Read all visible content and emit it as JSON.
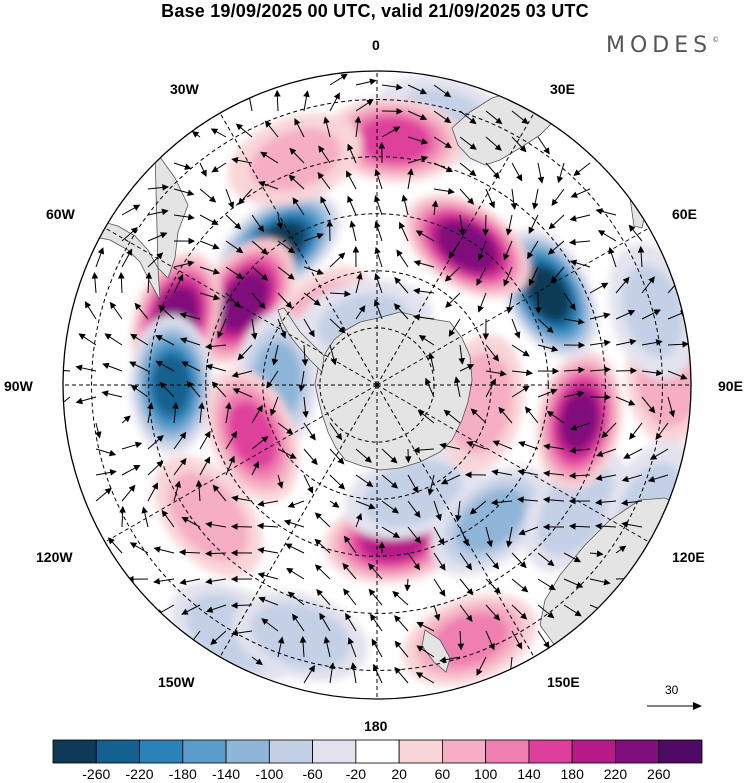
{
  "title": "Base 19/09/2025 00 UTC, valid 21/09/2025 03 UTC",
  "brand": "MODES",
  "brand_mark": "©",
  "lon_labels": {
    "n0": "0",
    "n30e": "30E",
    "n60e": "60E",
    "n90e": "90E",
    "n120e": "120E",
    "n150e": "150E",
    "n180": "180",
    "n150w": "150W",
    "n120w": "120W",
    "n90w": "90W",
    "n60w": "60W",
    "n30w": "30W"
  },
  "reference_vector": {
    "value": "30"
  },
  "colorbar": {
    "ticks": [
      "-260",
      "-220",
      "-180",
      "-140",
      "-100",
      "-60",
      "-20",
      "20",
      "60",
      "100",
      "140",
      "180",
      "220",
      "260"
    ],
    "colors": [
      "#0f3a57",
      "#14608f",
      "#2a82b8",
      "#5a9ccb",
      "#8fb5d8",
      "#c3d0e6",
      "#e3e3ef",
      "#ffffff",
      "#f9d5d8",
      "#f5aec3",
      "#ef7fb0",
      "#df3f9c",
      "#b81a89",
      "#800e7c",
      "#4f0a66"
    ]
  },
  "map": {
    "colors": {
      "land": "#e4e4e4",
      "coast": "#555555",
      "grid": "#000000"
    },
    "anomalies": [
      {
        "id": "neg-30w",
        "lon": -35,
        "colat": 60,
        "value": -270
      },
      {
        "id": "pos-55w",
        "lon": -58,
        "colat": 55,
        "value": 240
      },
      {
        "id": "pos-68w",
        "lon": -72,
        "colat": 74,
        "value": 250
      },
      {
        "id": "pos-48w",
        "lon": -44,
        "colat": 30,
        "value": 80
      },
      {
        "id": "neg-88w",
        "lon": -90,
        "colat": 72,
        "value": -230
      },
      {
        "id": "neg-80w-inner",
        "lon": -88,
        "colat": 35,
        "value": -110
      },
      {
        "id": "pos-110w",
        "lon": -112,
        "colat": 47,
        "value": 150
      },
      {
        "id": "neg-150w",
        "lon": -150,
        "colat": 100,
        "value": -90
      },
      {
        "id": "neg-165w",
        "lon": -163,
        "colat": 92,
        "value": -80
      },
      {
        "id": "pos-130w",
        "lon": -128,
        "colat": 75,
        "value": 80
      },
      {
        "id": "pos-175e",
        "lon": 174,
        "colat": 55,
        "value": 190
      },
      {
        "id": "neg-165e",
        "lon": 162,
        "colat": 40,
        "value": -80
      },
      {
        "id": "neg-140e",
        "lon": 140,
        "colat": 62,
        "value": -110
      },
      {
        "id": "neg-125e",
        "lon": 122,
        "colat": 82,
        "value": -80
      },
      {
        "id": "pos-160e",
        "lon": 160,
        "colat": 95,
        "value": 110
      },
      {
        "id": "pos-95e",
        "lon": 100,
        "colat": 72,
        "value": 220
      },
      {
        "id": "pos-100e-inner",
        "lon": 100,
        "colat": 37,
        "value": 80
      },
      {
        "id": "neg-65e",
        "lon": 62,
        "colat": 68,
        "value": -270
      },
      {
        "id": "pos-40e",
        "lon": 33,
        "colat": 58,
        "value": 250
      },
      {
        "id": "neg-15e",
        "lon": 14,
        "colat": 96,
        "value": -60
      },
      {
        "id": "pos-5e",
        "lon": 4,
        "colat": 86,
        "value": 160
      },
      {
        "id": "pos-25w",
        "lon": -20,
        "colat": 84,
        "value": 60
      },
      {
        "id": "neg-10w",
        "lon": -12,
        "colat": 22,
        "value": -60
      },
      {
        "id": "pos-105e-edge",
        "lon": 88,
        "colat": 102,
        "value": 90
      },
      {
        "id": "neg-115e-edge",
        "lon": 114,
        "colat": 105,
        "value": -60
      },
      {
        "id": "neg-75e-edge",
        "lon": 75,
        "colat": 100,
        "value": -60
      }
    ]
  }
}
